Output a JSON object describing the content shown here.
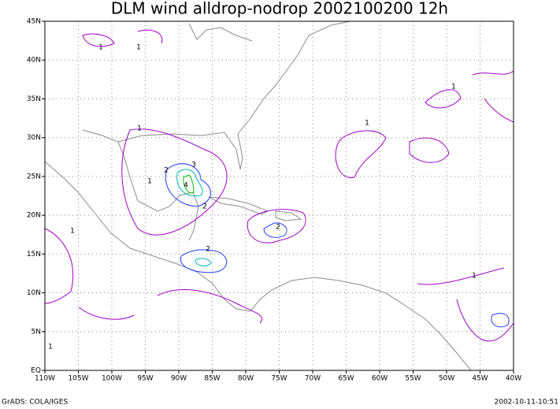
{
  "title": "DLM wind alldrop-nodrop 2002100200 12h",
  "lon_labels": [
    "110W",
    "105W",
    "100W",
    "95W",
    "90W",
    "85W",
    "80W",
    "75W",
    "70W",
    "65W",
    "60W",
    "55W",
    "50W",
    "45W",
    "40W"
  ],
  "lat_labels": [
    "EQ",
    "5N",
    "10N",
    "15N",
    "20N",
    "25N",
    "30N",
    "35N",
    "40N",
    "45N"
  ],
  "contour_labels": [
    "1",
    "1",
    "2",
    "3",
    "4",
    "2",
    "1",
    "2",
    "1",
    "1",
    "1",
    "1",
    "2",
    "1",
    "1"
  ],
  "footer": {
    "left": "GrADS: COLA/IGES",
    "right": "2002-10-11-10:51"
  }
}
